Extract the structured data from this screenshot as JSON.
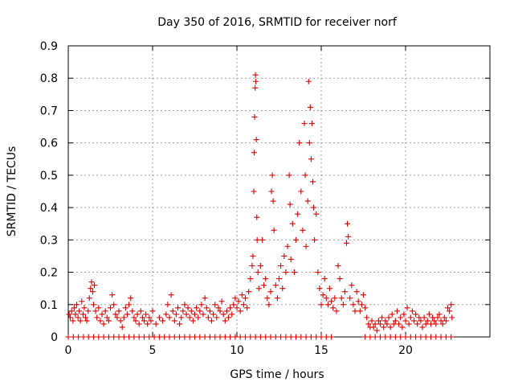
{
  "chart_data": {
    "type": "scatter",
    "title": "Day 350 of 2016, SRMTID for receiver norf",
    "xlabel": "GPS time / hours",
    "ylabel": "SRMTID / TECUs",
    "xlim": [
      0,
      25
    ],
    "ylim": [
      0,
      0.9
    ],
    "xticks": [
      "0",
      "5",
      "10",
      "15",
      "20"
    ],
    "yticks": [
      "0",
      "0.1",
      "0.2",
      "0.3",
      "0.4",
      "0.5",
      "0.6",
      "0.7",
      "0.8",
      "0.9"
    ],
    "grid": true,
    "marker": "+",
    "series_color": "#dd0000",
    "series": [
      {
        "name": "SRMTID",
        "points": [
          [
            0.05,
            0.07
          ],
          [
            0.12,
            0.06
          ],
          [
            0.2,
            0.08
          ],
          [
            0.28,
            0.05
          ],
          [
            0.35,
            0.09
          ],
          [
            0.42,
            0.07
          ],
          [
            0.5,
            0.1
          ],
          [
            0.58,
            0.06
          ],
          [
            0.65,
            0.08
          ],
          [
            0.72,
            0.05
          ],
          [
            0.8,
            0.11
          ],
          [
            0.88,
            0.07
          ],
          [
            0.95,
            0.09
          ],
          [
            1.02,
            0.06
          ],
          [
            1.1,
            0.05
          ],
          [
            1.18,
            0.08
          ],
          [
            1.25,
            0.12
          ],
          [
            1.32,
            0.15
          ],
          [
            1.38,
            0.17
          ],
          [
            1.45,
            0.14
          ],
          [
            1.5,
            0.1
          ],
          [
            1.55,
            0.16
          ],
          [
            1.62,
            0.08
          ],
          [
            1.7,
            0.06
          ],
          [
            1.8,
            0.09
          ],
          [
            1.9,
            0.05
          ],
          [
            2.0,
            0.07
          ],
          [
            2.1,
            0.04
          ],
          [
            2.2,
            0.08
          ],
          [
            2.3,
            0.06
          ],
          [
            2.4,
            0.05
          ],
          [
            2.5,
            0.09
          ],
          [
            2.6,
            0.13
          ],
          [
            2.7,
            0.1
          ],
          [
            2.8,
            0.07
          ],
          [
            2.9,
            0.06
          ],
          [
            3.0,
            0.08
          ],
          [
            3.1,
            0.05
          ],
          [
            3.2,
            0.03
          ],
          [
            3.3,
            0.06
          ],
          [
            3.4,
            0.09
          ],
          [
            3.5,
            0.07
          ],
          [
            3.6,
            0.1
          ],
          [
            3.7,
            0.12
          ],
          [
            3.8,
            0.08
          ],
          [
            3.9,
            0.06
          ],
          [
            4.0,
            0.05
          ],
          [
            4.1,
            0.07
          ],
          [
            4.2,
            0.04
          ],
          [
            4.3,
            0.08
          ],
          [
            4.4,
            0.06
          ],
          [
            4.5,
            0.05
          ],
          [
            4.6,
            0.07
          ],
          [
            4.7,
            0.04
          ],
          [
            4.8,
            0.06
          ],
          [
            4.9,
            0.05
          ],
          [
            5.0,
            0.08
          ],
          [
            5.2,
            0.04
          ],
          [
            5.4,
            0.06
          ],
          [
            5.6,
            0.05
          ],
          [
            5.8,
            0.07
          ],
          [
            5.9,
            0.1
          ],
          [
            6.0,
            0.06
          ],
          [
            6.1,
            0.13
          ],
          [
            6.2,
            0.08
          ],
          [
            6.3,
            0.05
          ],
          [
            6.4,
            0.07
          ],
          [
            6.5,
            0.09
          ],
          [
            6.6,
            0.04
          ],
          [
            6.7,
            0.06
          ],
          [
            6.8,
            0.08
          ],
          [
            6.9,
            0.1
          ],
          [
            7.0,
            0.07
          ],
          [
            7.1,
            0.09
          ],
          [
            7.2,
            0.06
          ],
          [
            7.3,
            0.08
          ],
          [
            7.4,
            0.05
          ],
          [
            7.5,
            0.07
          ],
          [
            7.6,
            0.09
          ],
          [
            7.7,
            0.06
          ],
          [
            7.8,
            0.08
          ],
          [
            7.9,
            0.1
          ],
          [
            8.0,
            0.07
          ],
          [
            8.1,
            0.12
          ],
          [
            8.2,
            0.09
          ],
          [
            8.3,
            0.06
          ],
          [
            8.4,
            0.08
          ],
          [
            8.5,
            0.05
          ],
          [
            8.6,
            0.07
          ],
          [
            8.7,
            0.1
          ],
          [
            8.8,
            0.06
          ],
          [
            8.9,
            0.09
          ],
          [
            9.0,
            0.08
          ],
          [
            9.1,
            0.11
          ],
          [
            9.2,
            0.07
          ],
          [
            9.3,
            0.05
          ],
          [
            9.4,
            0.08
          ],
          [
            9.5,
            0.06
          ],
          [
            9.6,
            0.09
          ],
          [
            9.7,
            0.07
          ],
          [
            9.8,
            0.1
          ],
          [
            9.9,
            0.12
          ],
          [
            10.0,
            0.09
          ],
          [
            10.1,
            0.11
          ],
          [
            10.2,
            0.08
          ],
          [
            10.3,
            0.13
          ],
          [
            10.4,
            0.1
          ],
          [
            10.5,
            0.12
          ],
          [
            10.6,
            0.09
          ],
          [
            10.7,
            0.14
          ],
          [
            10.8,
            0.18
          ],
          [
            10.9,
            0.22
          ],
          [
            10.95,
            0.25
          ],
          [
            11.0,
            0.45
          ],
          [
            11.02,
            0.57
          ],
          [
            11.05,
            0.68
          ],
          [
            11.08,
            0.77
          ],
          [
            11.1,
            0.81
          ],
          [
            11.12,
            0.79
          ],
          [
            11.15,
            0.61
          ],
          [
            11.18,
            0.37
          ],
          [
            11.2,
            0.3
          ],
          [
            11.25,
            0.2
          ],
          [
            11.3,
            0.15
          ],
          [
            11.4,
            0.22
          ],
          [
            11.5,
            0.3
          ],
          [
            11.6,
            0.16
          ],
          [
            11.7,
            0.18
          ],
          [
            11.8,
            0.12
          ],
          [
            11.9,
            0.1
          ],
          [
            12.0,
            0.14
          ],
          [
            12.05,
            0.45
          ],
          [
            12.1,
            0.5
          ],
          [
            12.15,
            0.42
          ],
          [
            12.2,
            0.33
          ],
          [
            12.3,
            0.16
          ],
          [
            12.4,
            0.12
          ],
          [
            12.5,
            0.18
          ],
          [
            12.6,
            0.22
          ],
          [
            12.7,
            0.15
          ],
          [
            12.8,
            0.25
          ],
          [
            12.9,
            0.2
          ],
          [
            13.0,
            0.28
          ],
          [
            13.1,
            0.5
          ],
          [
            13.15,
            0.41
          ],
          [
            13.2,
            0.24
          ],
          [
            13.3,
            0.35
          ],
          [
            13.4,
            0.2
          ],
          [
            13.5,
            0.3
          ],
          [
            13.6,
            0.38
          ],
          [
            13.7,
            0.6
          ],
          [
            13.8,
            0.45
          ],
          [
            13.9,
            0.33
          ],
          [
            14.0,
            0.66
          ],
          [
            14.05,
            0.5
          ],
          [
            14.1,
            0.28
          ],
          [
            14.2,
            0.42
          ],
          [
            14.25,
            0.79
          ],
          [
            14.3,
            0.6
          ],
          [
            14.35,
            0.71
          ],
          [
            14.4,
            0.55
          ],
          [
            14.45,
            0.66
          ],
          [
            14.5,
            0.48
          ],
          [
            14.55,
            0.4
          ],
          [
            14.6,
            0.3
          ],
          [
            14.7,
            0.38
          ],
          [
            14.8,
            0.2
          ],
          [
            14.9,
            0.15
          ],
          [
            15.0,
            0.1
          ],
          [
            15.1,
            0.13
          ],
          [
            15.2,
            0.18
          ],
          [
            15.3,
            0.12
          ],
          [
            15.4,
            0.1
          ],
          [
            15.5,
            0.15
          ],
          [
            15.6,
            0.11
          ],
          [
            15.7,
            0.09
          ],
          [
            15.8,
            0.12
          ],
          [
            15.9,
            0.08
          ],
          [
            16.0,
            0.22
          ],
          [
            16.1,
            0.18
          ],
          [
            16.2,
            0.12
          ],
          [
            16.3,
            0.1
          ],
          [
            16.4,
            0.14
          ],
          [
            16.5,
            0.29
          ],
          [
            16.55,
            0.35
          ],
          [
            16.6,
            0.31
          ],
          [
            16.7,
            0.12
          ],
          [
            16.8,
            0.16
          ],
          [
            16.9,
            0.1
          ],
          [
            17.0,
            0.08
          ],
          [
            17.1,
            0.14
          ],
          [
            17.2,
            0.11
          ],
          [
            17.3,
            0.08
          ],
          [
            17.4,
            0.1
          ],
          [
            17.5,
            0.13
          ],
          [
            17.6,
            0.09
          ],
          [
            17.7,
            0.06
          ],
          [
            17.8,
            0.04
          ],
          [
            17.9,
            0.03
          ],
          [
            18.0,
            0.05
          ],
          [
            18.1,
            0.03
          ],
          [
            18.2,
            0.04
          ],
          [
            18.3,
            0.02
          ],
          [
            18.4,
            0.05
          ],
          [
            18.5,
            0.04
          ],
          [
            18.6,
            0.06
          ],
          [
            18.7,
            0.03
          ],
          [
            18.8,
            0.05
          ],
          [
            18.9,
            0.04
          ],
          [
            19.0,
            0.06
          ],
          [
            19.1,
            0.03
          ],
          [
            19.2,
            0.07
          ],
          [
            19.3,
            0.04
          ],
          [
            19.4,
            0.05
          ],
          [
            19.5,
            0.08
          ],
          [
            19.6,
            0.04
          ],
          [
            19.7,
            0.06
          ],
          [
            19.8,
            0.03
          ],
          [
            19.9,
            0.07
          ],
          [
            20.0,
            0.05
          ],
          [
            20.1,
            0.09
          ],
          [
            20.2,
            0.04
          ],
          [
            20.3,
            0.06
          ],
          [
            20.4,
            0.08
          ],
          [
            20.5,
            0.05
          ],
          [
            20.6,
            0.07
          ],
          [
            20.7,
            0.04
          ],
          [
            20.8,
            0.06
          ],
          [
            20.9,
            0.05
          ],
          [
            21.0,
            0.03
          ],
          [
            21.1,
            0.06
          ],
          [
            21.2,
            0.04
          ],
          [
            21.3,
            0.05
          ],
          [
            21.4,
            0.07
          ],
          [
            21.5,
            0.04
          ],
          [
            21.6,
            0.06
          ],
          [
            21.7,
            0.05
          ],
          [
            21.8,
            0.04
          ],
          [
            21.9,
            0.06
          ],
          [
            22.0,
            0.07
          ],
          [
            22.1,
            0.05
          ],
          [
            22.2,
            0.04
          ],
          [
            22.3,
            0.06
          ],
          [
            22.4,
            0.05
          ],
          [
            22.5,
            0.09
          ],
          [
            22.6,
            0.08
          ],
          [
            22.7,
            0.1
          ],
          [
            22.75,
            0.06
          ],
          [
            0.0,
            0.0
          ],
          [
            0.3,
            0.0
          ],
          [
            0.6,
            0.0
          ],
          [
            0.9,
            0.0
          ],
          [
            1.2,
            0.0
          ],
          [
            1.5,
            0.0
          ],
          [
            1.8,
            0.0
          ],
          [
            2.1,
            0.0
          ],
          [
            2.4,
            0.0
          ],
          [
            2.7,
            0.0
          ],
          [
            3.0,
            0.0
          ],
          [
            3.3,
            0.0
          ],
          [
            3.6,
            0.0
          ],
          [
            3.9,
            0.0
          ],
          [
            4.2,
            0.0
          ],
          [
            4.5,
            0.0
          ],
          [
            4.8,
            0.0
          ],
          [
            5.1,
            0.0
          ],
          [
            5.4,
            0.0
          ],
          [
            5.7,
            0.0
          ],
          [
            6.0,
            0.0
          ],
          [
            6.3,
            0.0
          ],
          [
            6.6,
            0.0
          ],
          [
            6.9,
            0.0
          ],
          [
            7.2,
            0.0
          ],
          [
            7.5,
            0.0
          ],
          [
            7.8,
            0.0
          ],
          [
            8.1,
            0.0
          ],
          [
            8.4,
            0.0
          ],
          [
            8.7,
            0.0
          ],
          [
            9.0,
            0.0
          ],
          [
            9.3,
            0.0
          ],
          [
            9.6,
            0.0
          ],
          [
            9.9,
            0.0
          ],
          [
            10.2,
            0.0
          ],
          [
            10.5,
            0.0
          ],
          [
            10.8,
            0.0
          ],
          [
            11.1,
            0.0
          ],
          [
            11.4,
            0.0
          ],
          [
            11.7,
            0.0
          ],
          [
            12.0,
            0.0
          ],
          [
            12.3,
            0.0
          ],
          [
            12.6,
            0.0
          ],
          [
            12.9,
            0.0
          ],
          [
            13.2,
            0.0
          ],
          [
            13.5,
            0.0
          ],
          [
            13.8,
            0.0
          ],
          [
            14.1,
            0.0
          ],
          [
            14.4,
            0.0
          ],
          [
            14.7,
            0.0
          ],
          [
            15.0,
            0.0
          ],
          [
            15.3,
            0.0
          ],
          [
            15.6,
            0.0
          ],
          [
            17.6,
            0.0
          ],
          [
            17.9,
            0.0
          ],
          [
            18.2,
            0.0
          ],
          [
            18.5,
            0.0
          ],
          [
            18.8,
            0.0
          ],
          [
            19.1,
            0.0
          ],
          [
            19.4,
            0.0
          ],
          [
            19.7,
            0.0
          ],
          [
            20.0,
            0.0
          ],
          [
            20.3,
            0.0
          ],
          [
            20.6,
            0.0
          ],
          [
            20.9,
            0.0
          ],
          [
            21.2,
            0.0
          ],
          [
            21.5,
            0.0
          ],
          [
            21.8,
            0.0
          ],
          [
            22.1,
            0.0
          ],
          [
            22.4,
            0.0
          ],
          [
            22.7,
            0.0
          ]
        ]
      }
    ]
  }
}
